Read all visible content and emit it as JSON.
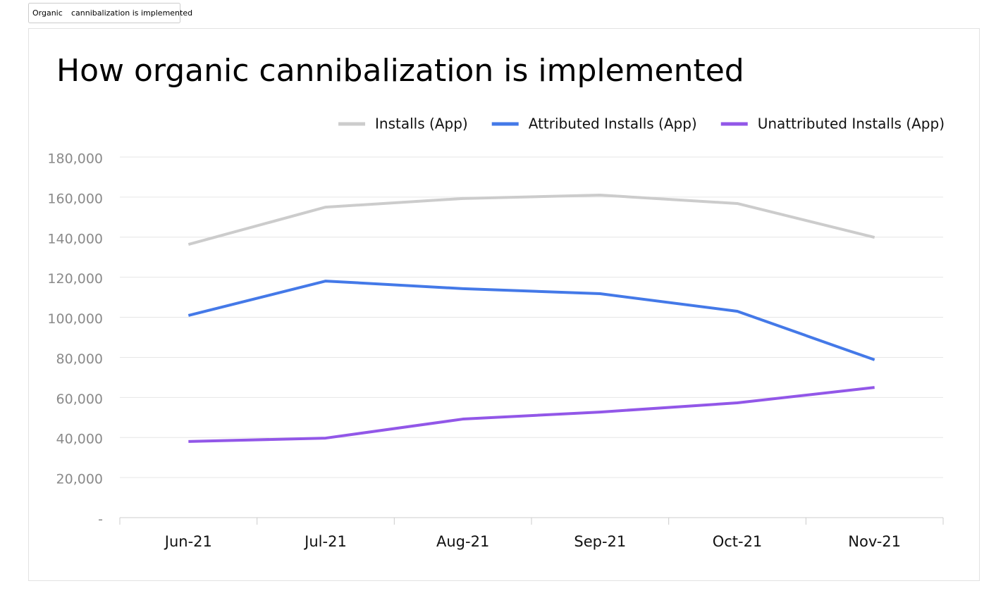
{
  "tab": [
    "Organic",
    "cannibalization is implemented"
  ],
  "chart_data": {
    "type": "line",
    "title": "How organic cannibalization is implemented",
    "categories": [
      "Jun-21",
      "Jul-21",
      "Aug-21",
      "Sep-21",
      "Oct-21",
      "Nov-21"
    ],
    "series": [
      {
        "name": "Installs (App)",
        "color": "#cccccc",
        "values": [
          136400,
          155000,
          159300,
          161000,
          156800,
          139900
        ]
      },
      {
        "name": "Attributed Installs (App)",
        "color": "#4479e8",
        "values": [
          100900,
          118100,
          114300,
          111800,
          103000,
          78800
        ]
      },
      {
        "name": "Unattributed Installs (App)",
        "color": "#9257e8",
        "values": [
          38000,
          39700,
          49200,
          52700,
          57300,
          65000
        ]
      }
    ],
    "ylim": [
      0,
      180000
    ],
    "yticks": [
      {
        "value": 0,
        "label": "-"
      },
      {
        "value": 20000,
        "label": "20,000"
      },
      {
        "value": 40000,
        "label": "40,000"
      },
      {
        "value": 60000,
        "label": "60,000"
      },
      {
        "value": 80000,
        "label": "80,000"
      },
      {
        "value": 100000,
        "label": "100,000"
      },
      {
        "value": 120000,
        "label": "120,000"
      },
      {
        "value": 140000,
        "label": "140,000"
      },
      {
        "value": 160000,
        "label": "160,000"
      },
      {
        "value": 180000,
        "label": "180,000"
      }
    ],
    "grid": true,
    "legend": "top-right"
  }
}
